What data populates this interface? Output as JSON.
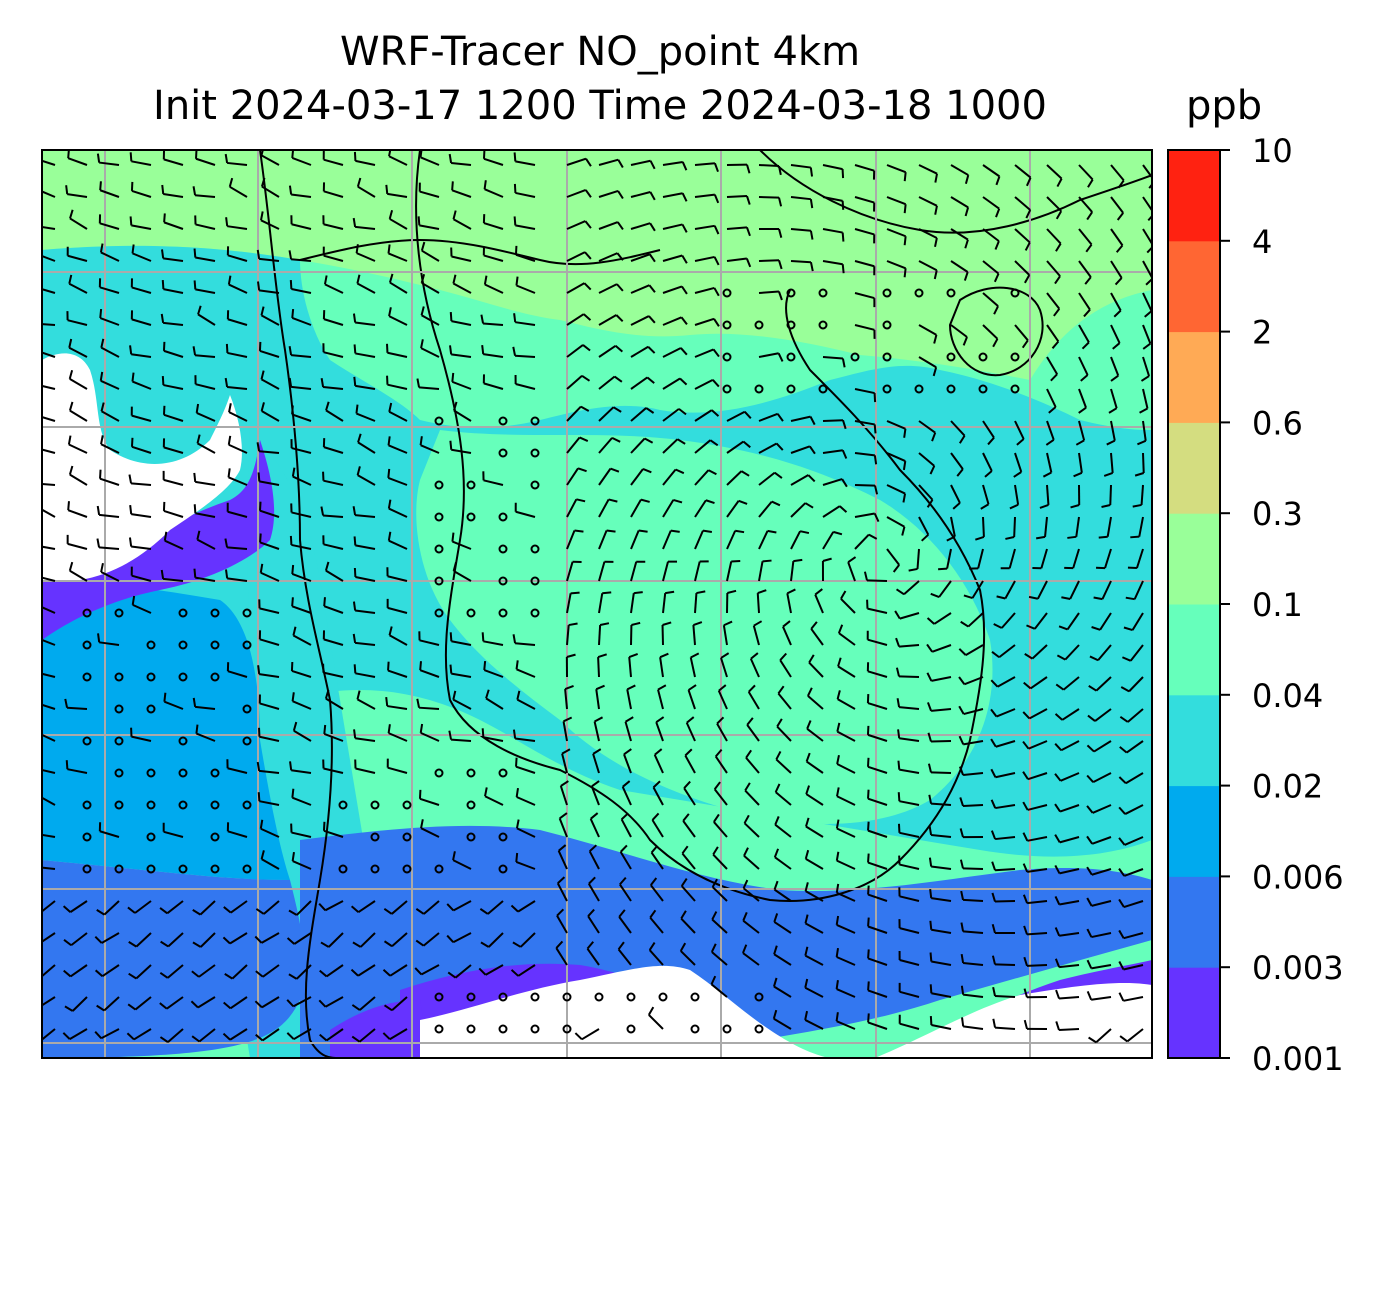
{
  "title": {
    "line1": "WRF-Tracer NO_point 4km",
    "line2": "Init 2024-03-17 1200 Time 2024-03-18 1000",
    "units": "ppb"
  },
  "colorbar": {
    "levels": [
      "0.001",
      "0.003",
      "0.006",
      "0.02",
      "0.04",
      "0.1",
      "0.3",
      "0.6",
      "2",
      "4",
      "10"
    ],
    "colors": [
      "#6633ff",
      "#3377f0",
      "#00aaee",
      "#33dddd",
      "#66ffbb",
      "#99ff99",
      "#d4dd80",
      "#ffaa55",
      "#ff6633",
      "#ff2211"
    ]
  },
  "map": {
    "field": "NO_point tracer concentration",
    "background_color": "#ffffff",
    "gridline_color": "#aaaaaa",
    "coastline_color": "#000000",
    "wind_barb_color": "#000000"
  }
}
